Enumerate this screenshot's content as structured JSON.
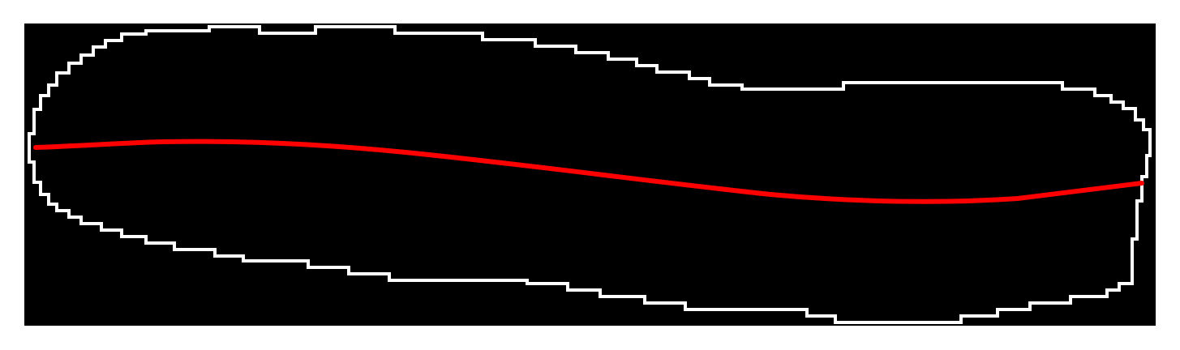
{
  "colors": {
    "page_background": "#ffffff",
    "canvas_background": "#000000",
    "contour": "#ffffff",
    "centerline": "#ff0000"
  }
}
